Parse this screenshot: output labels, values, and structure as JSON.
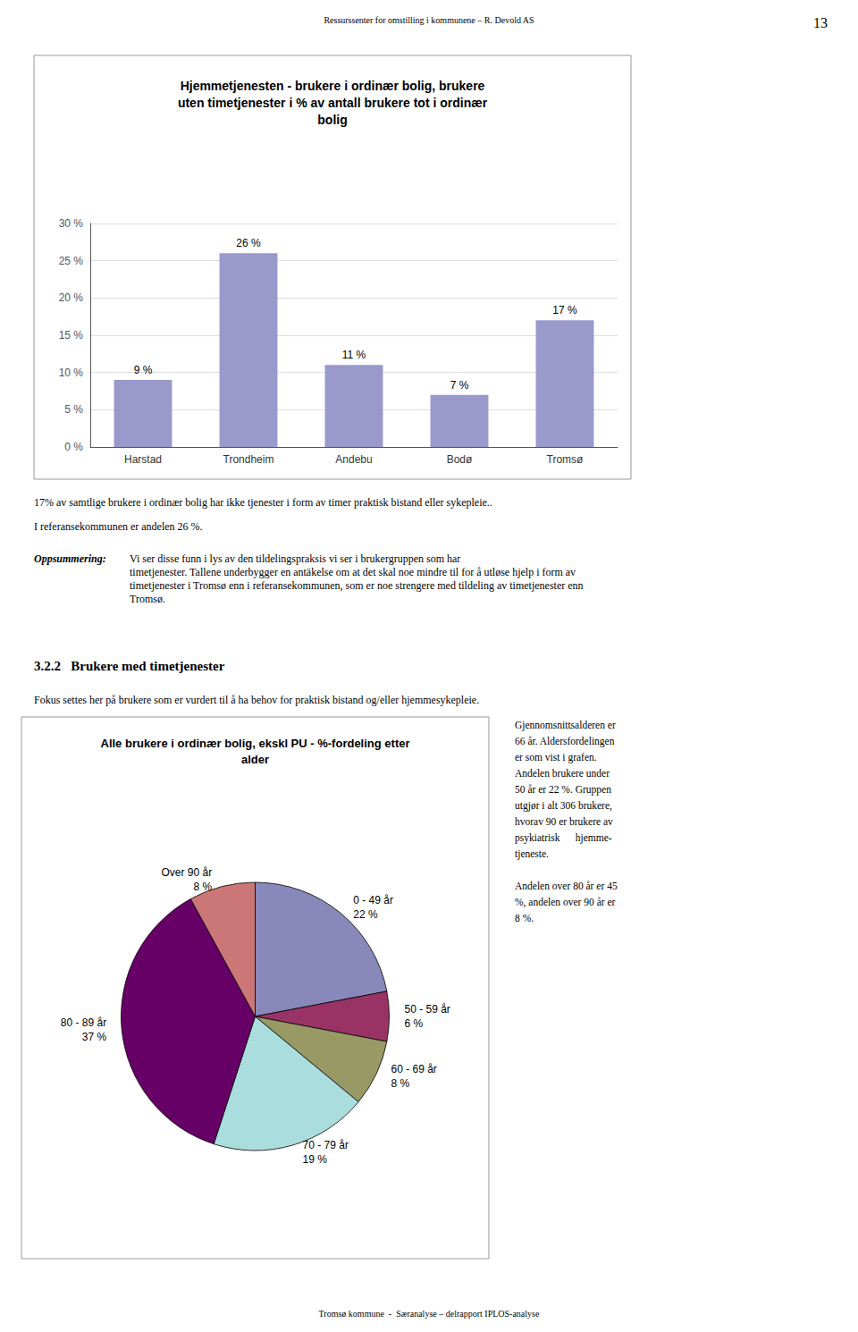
{
  "chart_data": [
    {
      "type": "bar",
      "title": "Hjemmetjenesten - brukere i ordinær bolig, brukere\nuten timetjenester i % av antall brukere tot i ordinær\nbolig",
      "categories": [
        "Harstad",
        "Trondheim",
        "Andebu",
        "Bodø",
        "Tromsø"
      ],
      "values": [
        9,
        26,
        11,
        7,
        17
      ],
      "value_labels": [
        "9 %",
        "26 %",
        "11 %",
        "7 %",
        "17 %"
      ],
      "data_labels": true,
      "color": "#9999cc",
      "ylim": [
        0,
        30
      ],
      "yticks": [
        {
          "value": 0,
          "label": "0 %"
        },
        {
          "value": 5,
          "label": "5 %"
        },
        {
          "value": 10,
          "label": "10 %"
        },
        {
          "value": 15,
          "label": "15 %"
        },
        {
          "value": 20,
          "label": "20 %"
        },
        {
          "value": 25,
          "label": "25 %"
        },
        {
          "value": 30,
          "label": "30 %"
        }
      ],
      "grid": true
    },
    {
      "type": "pie",
      "title": "Alle brukere i ordinær bolig, ekskl PU - %-fordeling etter\nalder",
      "categories": [
        "0 - 49 år",
        "50 - 59 år",
        "60 - 69 år",
        "70 - 79 år",
        "80 - 89 år",
        "Over 90 år"
      ],
      "values": [
        22,
        6,
        8,
        19,
        37,
        8
      ],
      "value_labels": [
        "22 %",
        "6 %",
        "8 %",
        "19 %",
        "37 %",
        "8 %"
      ],
      "data_labels": true,
      "colors": [
        "#8888bb",
        "#993366",
        "#999966",
        "#aadddd",
        "#660066",
        "#cc7777"
      ]
    }
  ],
  "annotations": [
    "Ressurssenter for omstilling i kommunene – R. Devold AS",
    "13",
    "Tromsø kommune  -  Særanalyse – delrapport IPLOS-analyse",
    "17% av samtlige brukere i ordinær bolig har ikke tjenester i form av timer praktisk bistand eller sykepleie..",
    "I referansekommunen er andelen 26 %.",
    "Oppsummering:",
    "Vi ser disse funn i lys av den tildelingspraksis vi ser i brukergruppen som har\ntimetjenester. Tallene underbygger en antäkelse om at det skal noe mindre til for å utløse hjelp i form av\ntimetjenester i Tromsø enn i referansekommunen, som er noe strengere med tildeling av timetjenester enn\nTromsø.",
    "3.2.2   Brukere med timetjenester",
    "Fokus settes her på brukere som er vurdert til å ha behov for praktisk bistand og/eller hjemmesykepleie.",
    "Gjennomsnittsalderen er\n66 år. Aldersfordelingen\ner som vist i grafen.\nAndelen brukere under\n50 år er 22 %. Gruppen\nutgjør i alt 306 brukere,\nhvorav 90 er brukere av\npsykiatrisk      hjemme-\ntjeneste.\n\nAndelen over 80 år er 45\n%, andelen over 90 år er\n8 %."
  ]
}
